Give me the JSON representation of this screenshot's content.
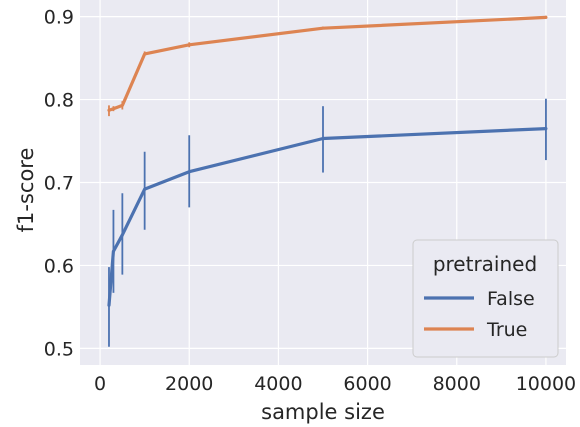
{
  "chart_data": {
    "type": "line",
    "xlabel": "sample size",
    "ylabel": "f1-score",
    "xlim": [
      -450,
      10450
    ],
    "ylim": [
      0.48,
      0.92
    ],
    "x_ticks": [
      0,
      2000,
      4000,
      6000,
      8000,
      10000
    ],
    "y_ticks": [
      0.5,
      0.6,
      0.7,
      0.8,
      0.9
    ],
    "y_tick_labels": [
      "0.5",
      "0.6",
      "0.7",
      "0.8",
      "0.9"
    ],
    "grid": true,
    "legend": {
      "title": "pretrained",
      "placement": "bottom-right"
    },
    "x": [
      200,
      300,
      500,
      1000,
      2000,
      5000,
      10000
    ],
    "series": [
      {
        "name": "False",
        "color": "#4c72b0",
        "values": [
          0.552,
          0.617,
          0.637,
          0.692,
          0.713,
          0.753,
          0.765
        ],
        "err_low": [
          0.502,
          0.567,
          0.589,
          0.643,
          0.67,
          0.712,
          0.727
        ],
        "err_high": [
          0.598,
          0.667,
          0.687,
          0.737,
          0.757,
          0.792,
          0.801
        ]
      },
      {
        "name": "True",
        "color": "#dd8452",
        "values": [
          0.787,
          0.789,
          0.793,
          0.855,
          0.866,
          0.886,
          0.899
        ],
        "err_low": [
          0.78,
          0.786,
          0.788,
          0.853,
          0.863,
          0.885,
          0.898
        ],
        "err_high": [
          0.793,
          0.792,
          0.798,
          0.858,
          0.869,
          0.888,
          0.901
        ]
      }
    ]
  }
}
